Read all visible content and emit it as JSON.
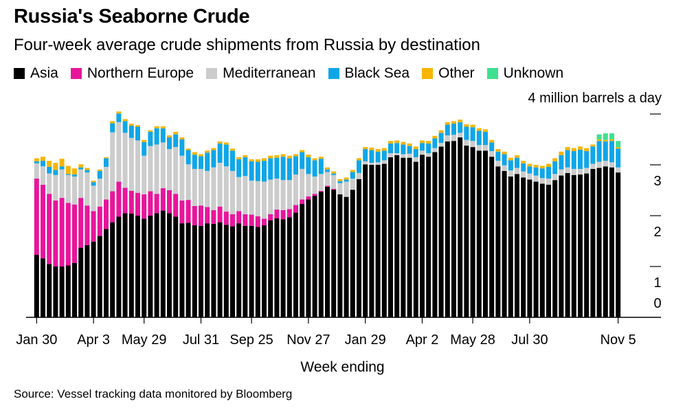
{
  "chart_data": {
    "type": "stacked-bar",
    "title": "Russia's Seaborne Crude",
    "subtitle": "Four-week average crude shipments from Russia by destination",
    "unit_label": "4 million barrels a day",
    "xlabel": "Week ending",
    "source": "Source: Vessel tracking data monitored by Bloomberg",
    "ylim": [
      0,
      4
    ],
    "y_ticks": [
      {
        "value": 1,
        "label": "1"
      },
      {
        "value": 2,
        "label": "2"
      },
      {
        "value": 3,
        "label": "3"
      }
    ],
    "y_zero_label": "0",
    "x_ticks": [
      {
        "index": 0,
        "label": "Jan 30"
      },
      {
        "index": 9,
        "label": "Apr 3"
      },
      {
        "index": 17,
        "label": "May 29"
      },
      {
        "index": 26,
        "label": "Jul 31"
      },
      {
        "index": 34,
        "label": "Sep 25"
      },
      {
        "index": 43,
        "label": "Nov 27"
      },
      {
        "index": 52,
        "label": "Jan 29"
      },
      {
        "index": 61,
        "label": "Apr 2"
      },
      {
        "index": 69,
        "label": "May 28"
      },
      {
        "index": 78,
        "label": "Jul 30"
      },
      {
        "index": 92,
        "label": "Nov 5"
      }
    ],
    "series": [
      {
        "name": "Asia",
        "color": "#000000",
        "values": [
          1.23,
          1.16,
          1.05,
          1.0,
          1.0,
          1.02,
          1.07,
          1.37,
          1.42,
          1.49,
          1.6,
          1.74,
          1.87,
          1.98,
          2.05,
          2.04,
          2.0,
          1.94,
          2.0,
          2.05,
          2.1,
          2.05,
          1.98,
          1.85,
          1.86,
          1.81,
          1.8,
          1.85,
          1.84,
          1.87,
          1.82,
          1.79,
          1.85,
          1.8,
          1.8,
          1.78,
          1.81,
          1.91,
          1.95,
          1.93,
          1.97,
          2.06,
          2.23,
          2.32,
          2.39,
          2.47,
          2.57,
          2.51,
          2.42,
          2.37,
          2.51,
          2.72,
          3.01,
          3.0,
          3.0,
          3.02,
          3.15,
          3.19,
          3.14,
          3.14,
          3.06,
          3.2,
          3.16,
          3.25,
          3.36,
          3.46,
          3.47,
          3.54,
          3.38,
          3.35,
          3.28,
          3.28,
          3.16,
          2.97,
          2.88,
          2.77,
          2.82,
          2.75,
          2.71,
          2.67,
          2.63,
          2.61,
          2.7,
          2.79,
          2.84,
          2.8,
          2.81,
          2.83,
          2.92,
          2.94,
          2.97,
          2.95,
          2.85
        ]
      },
      {
        "name": "Northern Europe",
        "color": "#e8159b",
        "values": [
          1.5,
          1.45,
          1.38,
          1.3,
          1.35,
          1.23,
          1.15,
          0.98,
          0.78,
          0.6,
          0.58,
          0.58,
          0.61,
          0.69,
          0.5,
          0.45,
          0.45,
          0.48,
          0.48,
          0.38,
          0.44,
          0.45,
          0.45,
          0.45,
          0.45,
          0.38,
          0.4,
          0.32,
          0.27,
          0.31,
          0.26,
          0.24,
          0.24,
          0.23,
          0.22,
          0.21,
          0.13,
          0.12,
          0.17,
          0.18,
          0.16,
          0.15,
          0.09,
          0.06,
          0.04,
          0.02,
          0.02,
          0.02,
          0,
          0,
          0,
          0,
          0,
          0,
          0,
          0,
          0,
          0,
          0,
          0,
          0,
          0,
          0,
          0,
          0,
          0,
          0,
          0,
          0,
          0,
          0,
          0,
          0,
          0,
          0,
          0,
          0,
          0,
          0,
          0,
          0,
          0,
          0,
          0,
          0,
          0,
          0,
          0,
          0,
          0,
          0,
          0,
          0
        ]
      },
      {
        "name": "Mediterranean",
        "color": "#cccccc",
        "values": [
          0.3,
          0.36,
          0.4,
          0.5,
          0.56,
          0.55,
          0.55,
          0.56,
          0.65,
          0.5,
          0.55,
          0.64,
          1.16,
          1.17,
          1.08,
          1.04,
          1.03,
          0.76,
          0.89,
          0.97,
          0.9,
          0.81,
          0.92,
          0.88,
          0.7,
          0.73,
          0.72,
          0.71,
          0.84,
          0.86,
          0.89,
          0.85,
          0.67,
          0.75,
          0.67,
          0.69,
          0.73,
          0.68,
          0.61,
          0.59,
          0.57,
          0.6,
          0.6,
          0.44,
          0.34,
          0.33,
          0.27,
          0.27,
          0.22,
          0.3,
          0.22,
          0.12,
          0.06,
          0.04,
          0.05,
          0.07,
          0.08,
          0.04,
          0.07,
          0.08,
          0.09,
          0.08,
          0.07,
          0.08,
          0.07,
          0.12,
          0.12,
          0.09,
          0.11,
          0.12,
          0.11,
          0.11,
          0.11,
          0.11,
          0.11,
          0.12,
          0.12,
          0.12,
          0.12,
          0.12,
          0.11,
          0.12,
          0.12,
          0.12,
          0.11,
          0.12,
          0.11,
          0.11,
          0.1,
          0.12,
          0.11,
          0.1,
          0.1
        ]
      },
      {
        "name": "Black Sea",
        "color": "#0fa6e8",
        "values": [
          0.04,
          0.11,
          0.13,
          0.1,
          0.06,
          0.02,
          0.04,
          0.04,
          0.05,
          0.07,
          0.15,
          0.17,
          0.18,
          0.17,
          0.23,
          0.24,
          0.27,
          0.27,
          0.28,
          0.32,
          0.28,
          0.23,
          0.25,
          0.32,
          0.28,
          0.28,
          0.25,
          0.36,
          0.34,
          0.38,
          0.43,
          0.4,
          0.35,
          0.37,
          0.38,
          0.38,
          0.41,
          0.42,
          0.41,
          0.46,
          0.43,
          0.36,
          0.33,
          0.33,
          0.32,
          0.3,
          0.05,
          0.03,
          0.04,
          0.04,
          0.13,
          0.25,
          0.24,
          0.25,
          0.21,
          0.19,
          0.19,
          0.2,
          0.19,
          0.15,
          0.16,
          0.15,
          0.19,
          0.19,
          0.2,
          0.21,
          0.22,
          0.21,
          0.26,
          0.27,
          0.28,
          0.26,
          0.17,
          0.18,
          0.22,
          0.2,
          0.2,
          0.16,
          0.14,
          0.16,
          0.19,
          0.23,
          0.25,
          0.28,
          0.34,
          0.35,
          0.38,
          0.33,
          0.34,
          0.41,
          0.38,
          0.42,
          0.37
        ]
      },
      {
        "name": "Other",
        "color": "#f7b500",
        "values": [
          0.06,
          0.08,
          0.12,
          0.14,
          0.15,
          0.16,
          0.12,
          0.06,
          0.04,
          0.03,
          0.03,
          0.02,
          0.04,
          0.04,
          0.04,
          0.04,
          0.03,
          0.04,
          0.03,
          0.04,
          0.04,
          0.04,
          0.05,
          0.04,
          0.03,
          0.05,
          0.04,
          0.04,
          0.04,
          0.04,
          0.04,
          0.04,
          0.04,
          0.04,
          0.04,
          0.05,
          0.05,
          0.05,
          0.05,
          0.05,
          0.05,
          0.04,
          0.04,
          0.05,
          0.04,
          0.04,
          0.04,
          0.04,
          0.04,
          0.04,
          0.04,
          0.04,
          0.04,
          0.05,
          0.05,
          0.05,
          0.05,
          0.05,
          0.05,
          0.05,
          0.05,
          0.05,
          0.05,
          0.05,
          0.05,
          0.05,
          0.05,
          0.05,
          0.05,
          0.05,
          0.05,
          0.05,
          0.05,
          0.05,
          0.05,
          0.05,
          0.05,
          0.05,
          0.05,
          0.05,
          0.05,
          0.06,
          0.06,
          0.07,
          0.06,
          0.06,
          0.06,
          0.06,
          0.04,
          0.03,
          0.03,
          0.03,
          0.03
        ]
      },
      {
        "name": "Unknown",
        "color": "#3ee08f",
        "values": [
          0,
          0,
          0,
          0,
          0,
          0,
          0,
          0,
          0,
          0,
          0,
          0,
          0,
          0,
          0,
          0,
          0,
          0,
          0,
          0,
          0,
          0,
          0,
          0,
          0,
          0,
          0,
          0,
          0,
          0,
          0,
          0,
          0,
          0,
          0,
          0,
          0,
          0,
          0,
          0,
          0,
          0,
          0,
          0,
          0,
          0,
          0,
          0,
          0,
          0,
          0,
          0,
          0,
          0,
          0,
          0,
          0,
          0,
          0,
          0,
          0,
          0,
          0,
          0,
          0,
          0,
          0,
          0,
          0,
          0,
          0,
          0,
          0,
          0,
          0,
          0,
          0,
          0,
          0,
          0,
          0,
          0,
          0,
          0,
          0,
          0,
          0,
          0,
          0,
          0.1,
          0.13,
          0.12,
          0.12
        ]
      }
    ]
  }
}
